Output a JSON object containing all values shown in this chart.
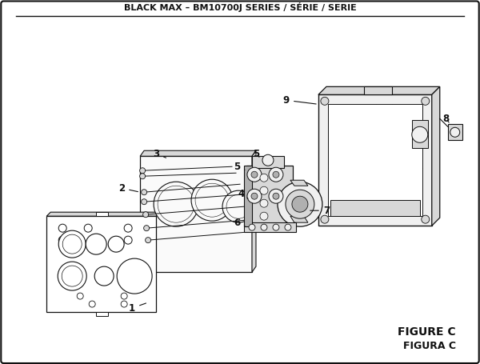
{
  "title": "BLACK MAX – BM10700J SERIES / SÉRIE / SERIE",
  "figure_label": "FIGURE C",
  "figura_label": "FIGURA C",
  "bg_color": "#ffffff",
  "line_color": "#111111",
  "part_fill": "#f0f0f0",
  "part_mid": "#d8d8d8",
  "part_dark": "#b0b0b0",
  "white": "#ffffff",
  "title_fontsize": 8.0,
  "label_fontsize": 8.5,
  "figure_label_fontsize": 10
}
